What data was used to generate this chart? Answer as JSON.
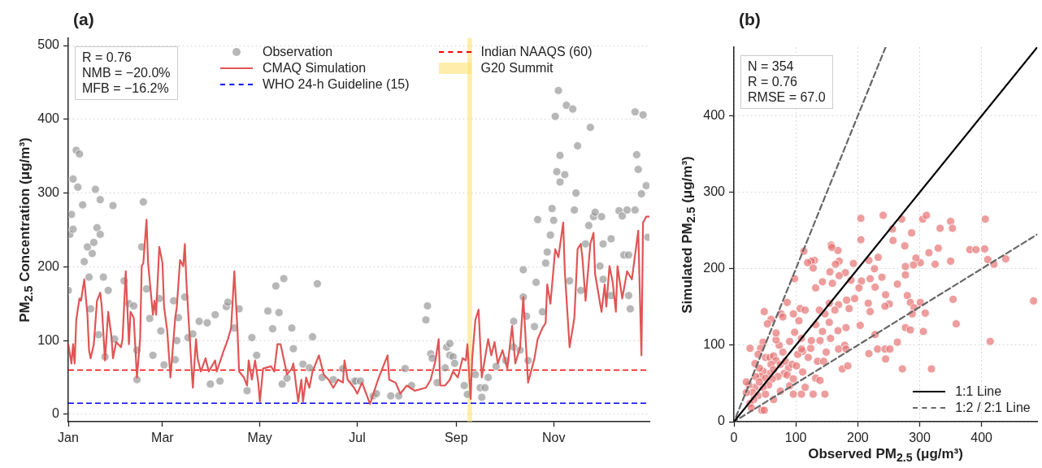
{
  "chart_data": [
    {
      "type": "line",
      "title": "(a)",
      "ylabel": "PM$_{2.5}$ Concentration (μg/m³)",
      "xlim": [
        "--01-01",
        "--12-31"
      ],
      "xticks": [
        {
          "value": "--01-01",
          "label": "Jan"
        },
        {
          "value": "--03-01",
          "label": "Mar"
        },
        {
          "value": "--05-01",
          "label": "May"
        },
        {
          "value": "--07-01",
          "label": "Jul"
        },
        {
          "value": "--09-01",
          "label": "Sep"
        },
        {
          "value": "--11-01",
          "label": "Nov"
        }
      ],
      "ylim": [
        -10,
        510
      ],
      "yticks": [
        0,
        100,
        200,
        300,
        400,
        500
      ],
      "grid": "y",
      "legend": "top",
      "annotations": [
        "R = 0.76",
        "NMB = −20.0%",
        "MFB = −16.2%"
      ],
      "series": [
        {
          "name": "Observation",
          "type": "scatter",
          "marker": "circle",
          "color": "#999999",
          "x": [
            "--01-01",
            "--01-02",
            "--01-03",
            "--01-04",
            "--01-04",
            "--01-06",
            "--01-07",
            "--01-08",
            "--01-10",
            "--01-11",
            "--01-13",
            "--01-14",
            "--01-15",
            "--01-16",
            "--01-17",
            "--01-18",
            "--01-19",
            "--01-20",
            "--01-21",
            "--01-21",
            "--01-23",
            "--01-24",
            "--01-26",
            "--01-29",
            "--01-30",
            "--02-05",
            "--02-08",
            "--02-11",
            "--02-13",
            "--02-13",
            "--02-16",
            "--02-17",
            "--02-19",
            "--02-21",
            "--02-23",
            "--02-27",
            "--02-28",
            "--03-02",
            "--03-08",
            "--03-09",
            "--03-10",
            "--03-11",
            "--03-15",
            "--03-17",
            "--03-20",
            "--03-24",
            "--03-29",
            "--03-31",
            "--04-03",
            "--04-06",
            "--04-10",
            "--04-11",
            "--04-15",
            "--04-18",
            "--04-23",
            "--04-26",
            "--04-29",
            "--05-06",
            "--05-09",
            "--05-11",
            "--05-13",
            "--05-15",
            "--05-16",
            "--05-18",
            "--05-21",
            "--05-22",
            "--05-28",
            "--06-01",
            "--06-03",
            "--06-06",
            "--06-09",
            "--06-16",
            "--06-22",
            "--06-29",
            "--06-30",
            "--07-03",
            "--07-11",
            "--07-13",
            "--07-22",
            "--07-27",
            "--07-31",
            "--08-04",
            "--08-13",
            "--08-14",
            "--08-16",
            "--08-17",
            "--08-20",
            "--08-25",
            "--08-26",
            "--08-28",
            "--08-28",
            "--08-30",
            "--08-31",
            "--09-06",
            "--09-08",
            "--09-13",
            "--09-16",
            "--09-17",
            "--09-19",
            "--09-21",
            "--09-26",
            "--10-02",
            "--10-07",
            "--10-07",
            "--10-11",
            "--10-13",
            "--10-13",
            "--10-15",
            "--10-16",
            "--10-20",
            "--10-21",
            "--10-22",
            "--10-25",
            "--10-27",
            "--10-28",
            "--10-30",
            "--10-31",
            "--11-01",
            "--11-02",
            "--11-03",
            "--11-04",
            "--11-05",
            "--11-05",
            "--11-08",
            "--11-09",
            "--11-11",
            "--11-13",
            "--11-14",
            "--11-15",
            "--11-16",
            "--11-18",
            "--11-21",
            "--11-23",
            "--11-24",
            "--11-26",
            "--11-27",
            "--11-30",
            "--12-01",
            "--12-02",
            "--12-02",
            "--12-07",
            "--12-07",
            "--12-12",
            "--12-14",
            "--12-15",
            "--12-17",
            "--12-18",
            "--12-18",
            "--12-19",
            "--12-22",
            "--12-22",
            "--12-23",
            "--12-24",
            "--12-26",
            "--12-27",
            "--12-29",
            "--12-30"
          ],
          "values": [
            168,
            244,
            271,
            251,
            319,
            358,
            308,
            353,
            284,
            207,
            227,
            186,
            143,
            218,
            233,
            305,
            253,
            108,
            244,
            291,
            186,
            78,
            168,
            283,
            102,
            181,
            150,
            147,
            87,
            47,
            227,
            288,
            170,
            130,
            80,
            157,
            113,
            67,
            154,
            74,
            100,
            131,
            159,
            104,
            109,
            126,
            124,
            41,
            135,
            45,
            146,
            152,
            117,
            143,
            32,
            104,
            80,
            140,
            116,
            174,
            138,
            41,
            184,
            49,
            117,
            89,
            68,
            63,
            105,
            177,
            50,
            47,
            62,
            45,
            45,
            45,
            25,
            28,
            25,
            25,
            62,
            39,
            128,
            147,
            82,
            76,
            43,
            63,
            91,
            96,
            80,
            78,
            69,
            39,
            27,
            54,
            36,
            23,
            36,
            50,
            65,
            73,
            126,
            91,
            87,
            159,
            196,
            133,
            73,
            119,
            179,
            264,
            139,
            205,
            220,
            243,
            279,
            263,
            404,
            329,
            439,
            351,
            315,
            325,
            419,
            181,
            414,
            277,
            300,
            364,
            168,
            231,
            256,
            389,
            268,
            274,
            201,
            268,
            231,
            183,
            161,
            238,
            276,
            269,
            216,
            277,
            216,
            161,
            143,
            277,
            410,
            352,
            332,
            299,
            406,
            310,
            240
          ]
        },
        {
          "name": "CMAQ Simulation",
          "color": "#e05555",
          "x": [
            "--01-01",
            "--01-03",
            "--01-04",
            "--01-05",
            "--01-06",
            "--01-08",
            "--01-09",
            "--01-11",
            "--01-13",
            "--01-14",
            "--01-15",
            "--01-17",
            "--01-19",
            "--01-21",
            "--01-22",
            "--01-24",
            "--01-26",
            "--01-28",
            "--01-29",
            "--01-31",
            "--02-03",
            "--02-04",
            "--02-06",
            "--02-08",
            "--02-09",
            "--02-11",
            "--02-13",
            "--02-15",
            "--02-16",
            "--02-17",
            "--02-19",
            "--02-20",
            "--02-23",
            "--02-24",
            "--02-25",
            "--02-27",
            "--03-01",
            "--03-02",
            "--03-04",
            "--03-06",
            "--03-09",
            "--03-10",
            "--03-12",
            "--03-14",
            "--03-15",
            "--03-16",
            "--03-18",
            "--03-20",
            "--03-22",
            "--03-23",
            "--03-25",
            "--03-28",
            "--03-30",
            "--04-03",
            "--04-04",
            "--04-08",
            "--04-11",
            "--04-13",
            "--04-15",
            "--04-17",
            "--04-18",
            "--04-21",
            "--04-23",
            "--04-24",
            "--04-26",
            "--04-28",
            "--04-30",
            "--05-01",
            "--05-03",
            "--05-08",
            "--05-10",
            "--05-12",
            "--05-14",
            "--05-18",
            "--05-21",
            "--05-22",
            "--05-25",
            "--05-27",
            "--05-28",
            "--05-30",
            "--06-01",
            "--06-03",
            "--06-07",
            "--06-10",
            "--06-13",
            "--06-16",
            "--06-19",
            "--06-22",
            "--06-23",
            "--06-25",
            "--06-29",
            "--07-01",
            "--07-04",
            "--07-09",
            "--07-14",
            "--07-20",
            "--07-21",
            "--07-25",
            "--07-28",
            "--08-01",
            "--08-06",
            "--08-13",
            "--08-16",
            "--08-19",
            "--08-21",
            "--08-22",
            "--08-25",
            "--08-28",
            "--08-30",
            "--09-02",
            "--09-05",
            "--09-07",
            "--09-08",
            "--09-09",
            "--09-10",
            "--09-11",
            "--09-13",
            "--09-15",
            "--09-17",
            "--09-19",
            "--09-21",
            "--09-23",
            "--09-25",
            "--09-27",
            "--09-30",
            "--10-03",
            "--10-06",
            "--10-08",
            "--10-11",
            "--10-13",
            "--10-16",
            "--10-20",
            "--10-22",
            "--10-25",
            "--10-27",
            "--10-28",
            "--10-30",
            "--11-02",
            "--11-04",
            "--11-07",
            "--11-08",
            "--11-11",
            "--11-14",
            "--11-16",
            "--11-18",
            "--11-19",
            "--11-21",
            "--11-24",
            "--11-26",
            "--11-27",
            "--12-01",
            "--12-03",
            "--12-04",
            "--12-06",
            "--12-08",
            "--12-10",
            "--12-11",
            "--12-14",
            "--12-17",
            "--12-20",
            "--12-24",
            "--12-26",
            "--12-27",
            "--12-29",
            "--12-31"
          ],
          "values": [
            95,
            69,
            95,
            69,
            128,
            157,
            154,
            183,
            135,
            87,
            76,
            95,
            154,
            165,
            146,
            73,
            139,
            106,
            76,
            98,
            91,
            102,
            194,
            95,
            139,
            131,
            50,
            102,
            201,
            205,
            264,
            205,
            135,
            154,
            135,
            227,
            205,
            146,
            113,
            50,
            131,
            146,
            209,
            201,
            231,
            179,
            106,
            36,
            102,
            76,
            58,
            76,
            58,
            73,
            58,
            84,
            102,
            117,
            194,
            113,
            58,
            50,
            39,
            73,
            47,
            73,
            43,
            17,
            62,
            65,
            58,
            95,
            95,
            54,
            62,
            69,
            17,
            47,
            17,
            50,
            36,
            58,
            80,
            54,
            47,
            36,
            47,
            43,
            73,
            47,
            36,
            28,
            43,
            14,
            47,
            80,
            47,
            43,
            28,
            39,
            32,
            36,
            47,
            73,
            102,
            39,
            39,
            47,
            58,
            50,
            76,
            73,
            95,
            58,
            21,
            76,
            128,
            142,
            50,
            76,
            102,
            80,
            98,
            69,
            87,
            62,
            120,
            69,
            91,
            159,
            43,
            76,
            102,
            117,
            124,
            176,
            150,
            224,
            213,
            260,
            194,
            91,
            131,
            224,
            231,
            213,
            154,
            231,
            246,
            190,
            139,
            176,
            146,
            201,
            179,
            139,
            201,
            157,
            194,
            183,
            249,
            80,
            260,
            268,
            268
          ]
        }
      ],
      "ref_lines": [
        {
          "axis": "y",
          "value": 15,
          "label": "WHO 24-h Guideline (15)",
          "color": "#0000ff",
          "line_style": "dashed"
        },
        {
          "axis": "y",
          "value": 60,
          "label": "Indian NAAQS (60)",
          "color": "#ff0000",
          "line_style": "dashed"
        }
      ],
      "bands": [
        {
          "axis": "x",
          "from": "--09-08",
          "to": "--09-11",
          "label": "G20 Summit",
          "color": "#ffe066"
        }
      ]
    },
    {
      "type": "scatter",
      "title": "(b)",
      "xlabel": "Observed PM$_{2.5}$ (μg/m³)",
      "ylabel": "Simulated PM$_{2.5}$ (μg/m³)",
      "xlim": [
        0,
        490
      ],
      "ylim": [
        0,
        490
      ],
      "xticks": [
        0,
        100,
        200,
        300,
        400
      ],
      "yticks": [
        0,
        100,
        200,
        300,
        400
      ],
      "grid": true,
      "legend": "bottom right",
      "annotations": [
        "N = 354",
        "R = 0.76",
        "RMSE = 67.0"
      ],
      "series": [
        {
          "marker": "circle",
          "color": "#e57373",
          "x": [
            241,
            205,
            271,
            305,
            311,
            350,
            406,
            256,
            333,
            353,
            287,
            205,
            257,
            276,
            330,
            381,
            391,
            405,
            315,
            410,
            439,
            420,
            350,
            301,
            294,
            290,
            325,
            277,
            233,
            218,
            193,
            227,
            277,
            239,
            220,
            206,
            180,
            189,
            170,
            168,
            157,
            158,
            164,
            155,
            159,
            170,
            143,
            130,
            125,
            119,
            113,
            128,
            132,
            98,
            228,
            264,
            202,
            195,
            182,
            217,
            245,
            280,
            251,
            285,
            301,
            354,
            220,
            244,
            291,
            309,
            288,
            186,
            169,
            154,
            138,
            107,
            115,
            86,
            163,
            147,
            154,
            132,
            143,
            168,
            181,
            204,
            105,
            98,
            139,
            156,
            277,
            285,
            306,
            359,
            228,
            264,
            414,
            179,
            169,
            181,
            218,
            232,
            244,
            252,
            245,
            272,
            319,
            175,
            184,
            135,
            145,
            149,
            124,
            125,
            120,
            111,
            109,
            90,
            79,
            73,
            68,
            68,
            49,
            60,
            54,
            76,
            79,
            96,
            47,
            43,
            26,
            34,
            39,
            51,
            58,
            64,
            68,
            75,
            83,
            88,
            94,
            101,
            111,
            81,
            71,
            58,
            47,
            41,
            43,
            51,
            62,
            56,
            47,
            34,
            24,
            20,
            30,
            39,
            51,
            64,
            75,
            90,
            96,
            109,
            115,
            128,
            147,
            86,
            96,
            32,
            26,
            28,
            45,
            49,
            35,
            41,
            103,
            109,
            132,
            139,
            20,
            60,
            64,
            484
          ],
          "values": [
            270,
            266,
            265,
            265,
            270,
            262,
            265,
            252,
            253,
            253,
            247,
            238,
            237,
            230,
            227,
            225,
            225,
            226,
            221,
            212,
            213,
            206,
            210,
            208,
            214,
            205,
            206,
            203,
            215,
            211,
            207,
            200,
            192,
            189,
            187,
            184,
            195,
            185,
            210,
            224,
            231,
            228,
            206,
            196,
            181,
            191,
            183,
            211,
            210,
            208,
            223,
            201,
            175,
            187,
            176,
            180,
            175,
            161,
            159,
            155,
            166,
            165,
            154,
            156,
            156,
            160,
            144,
            151,
            149,
            142,
            141,
            148,
            153,
            155,
            146,
            148,
            146,
            156,
            146,
            141,
            130,
            127,
            118,
            119,
            123,
            126,
            132,
            117,
            106,
            109,
            123,
            120,
            118,
            128,
            114,
            104,
            105,
            100,
            95,
            95,
            89,
            95,
            95,
            95,
            82,
            69,
            69,
            69,
            73,
            79,
            79,
            91,
            96,
            106,
            84,
            92,
            109,
            105,
            91,
            100,
            107,
            116,
            144,
            134,
            128,
            141,
            137,
            141,
            104,
            96,
            96,
            76,
            88,
            84,
            84,
            86,
            80,
            75,
            79,
            70,
            75,
            73,
            65,
            63,
            59,
            63,
            66,
            70,
            59,
            57,
            56,
            48,
            45,
            45,
            48,
            52,
            38,
            34,
            36,
            29,
            40,
            47,
            36,
            36,
            45,
            36,
            36,
            61,
            56,
            29,
            24,
            18,
            15,
            15,
            59,
            52,
            88,
            95,
            57,
            54,
            38,
            75,
            68,
            158
          ]
        },
        {
          "name": "1:1 Line",
          "type": "line",
          "color": "#000000",
          "x": [
            0,
            490
          ],
          "values": [
            0,
            490
          ]
        },
        {
          "name": "1:2 / 2:1 Line",
          "type": "line",
          "line_style": "dashed",
          "color": "#666666",
          "x": [
            245,
            0,
            490
          ],
          "values": [
            490,
            0,
            245
          ]
        }
      ]
    }
  ]
}
